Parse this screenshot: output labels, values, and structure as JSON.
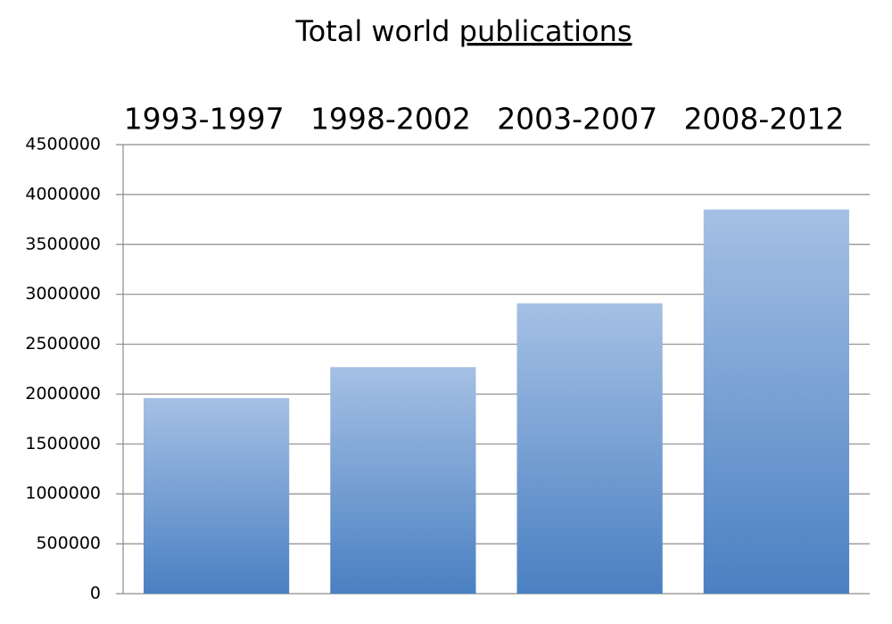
{
  "chart_data": {
    "type": "bar",
    "title": [
      "Total world",
      "publications"
    ],
    "title_underline": [
      false,
      true
    ],
    "categories": [
      "1993-1997",
      "1998-2002",
      "2003-2007",
      "2008-2012"
    ],
    "values": [
      1960000,
      2270000,
      2910000,
      3850000
    ],
    "gradient": [
      "#a5c0e4",
      "#4a80c2"
    ],
    "ylim": [
      0,
      4500000
    ],
    "yticks": [
      0,
      500000,
      1000000,
      1500000,
      2000000,
      2500000,
      3000000,
      3500000,
      4000000,
      4500000
    ],
    "grid": true
  }
}
